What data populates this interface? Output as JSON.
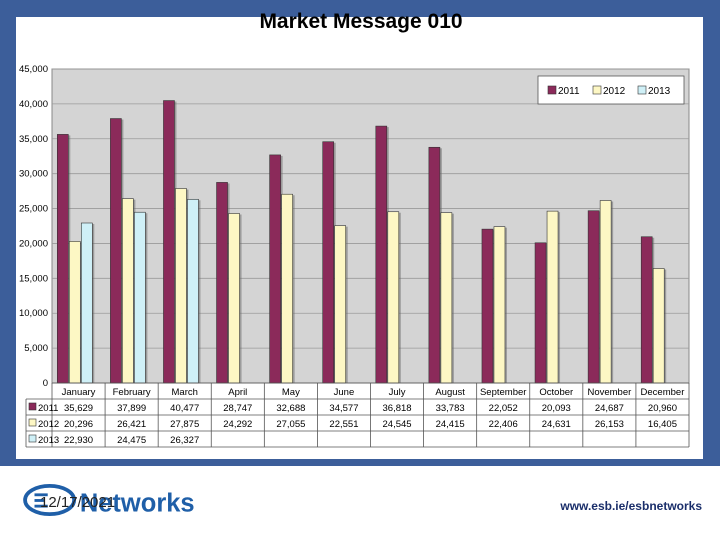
{
  "chart_data": {
    "type": "bar",
    "title": "Market Message 010",
    "categories": [
      "January",
      "February",
      "March",
      "April",
      "May",
      "June",
      "July",
      "August",
      "September",
      "October",
      "November",
      "December"
    ],
    "ylim": [
      0,
      45000
    ],
    "yticks": [
      "0",
      "5,000",
      "10,000",
      "15,000",
      "20,000",
      "25,000",
      "30,000",
      "35,000",
      "40,000",
      "45,000"
    ],
    "grid": true,
    "legend_position": "top-right",
    "series": [
      {
        "name": "2011",
        "color": "#8b2a5a",
        "values": [
          35629,
          37899,
          40477,
          28747,
          32688,
          34577,
          36818,
          33783,
          22052,
          20093,
          24687,
          20960
        ],
        "labels": [
          "35,629",
          "37,899",
          "40,477",
          "28,747",
          "32,688",
          "34,577",
          "36,818",
          "33,783",
          "22,052",
          "20,093",
          "24,687",
          "20,960"
        ]
      },
      {
        "name": "2012",
        "color": "#fdf7c4",
        "values": [
          20296,
          26421,
          27875,
          24292,
          27055,
          22551,
          24545,
          24415,
          22406,
          24631,
          26153,
          16405
        ],
        "labels": [
          "20,296",
          "26,421",
          "27,875",
          "24,292",
          "27,055",
          "22,551",
          "24,545",
          "24,415",
          "22,406",
          "24,631",
          "26,153",
          "16,405"
        ]
      },
      {
        "name": "2013",
        "color": "#cff0f7",
        "values": [
          22930,
          24475,
          26327,
          null,
          null,
          null,
          null,
          null,
          null,
          null,
          null,
          null
        ],
        "labels": [
          "22,930",
          "24,475",
          "26,327",
          "",
          "",
          "",
          "",
          "",
          "",
          "",
          "",
          ""
        ]
      }
    ]
  },
  "footer": {
    "date": "12/17/2021",
    "logo_text": "Networks",
    "url": "www.esb.ie/esbnetworks"
  },
  "colors": {
    "frame": "#3c5e9a",
    "plot_bg": "#d4d4d4",
    "logo_blue": "#1f5fa8"
  }
}
